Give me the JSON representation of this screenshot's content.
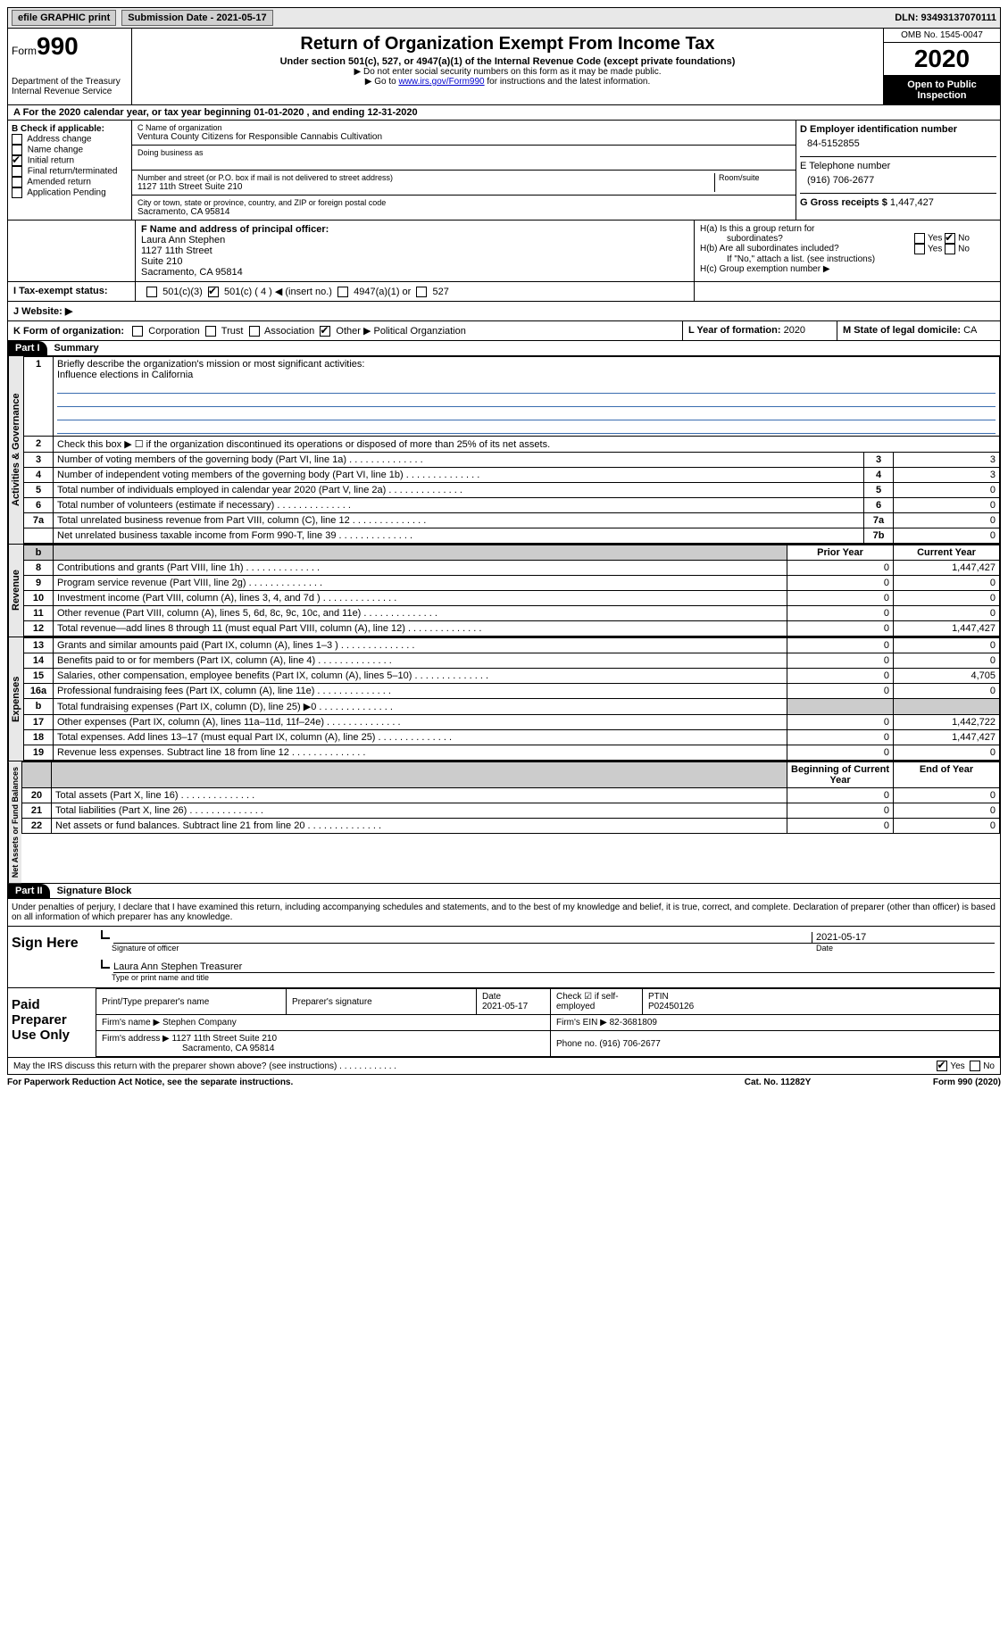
{
  "topbar": {
    "efile": "efile GRAPHIC print",
    "submission": "Submission Date - 2021-05-17",
    "dln": "DLN: 93493137070111"
  },
  "header": {
    "form_word": "Form",
    "form_num": "990",
    "dept": "Department of the Treasury\nInternal Revenue Service",
    "title": "Return of Organization Exempt From Income Tax",
    "subtitle": "Under section 501(c), 527, or 4947(a)(1) of the Internal Revenue Code (except private foundations)",
    "note1": "▶ Do not enter social security numbers on this form as it may be made public.",
    "note2_pre": "▶ Go to ",
    "note2_link": "www.irs.gov/Form990",
    "note2_post": " for instructions and the latest information.",
    "omb": "OMB No. 1545-0047",
    "year": "2020",
    "inspect": "Open to Public Inspection"
  },
  "period": "A For the 2020 calendar year, or tax year beginning 01-01-2020     , and ending 12-31-2020",
  "boxB": {
    "title": "B Check if applicable:",
    "items": [
      "Address change",
      "Name change",
      "Initial return",
      "Final return/terminated",
      "Amended return",
      "Application Pending"
    ],
    "checked_index": 2
  },
  "boxC": {
    "name_lbl": "C Name of organization",
    "name": "Ventura County Citizens for Responsible Cannabis Cultivation",
    "dba_lbl": "Doing business as",
    "addr_lbl": "Number and street (or P.O. box if mail is not delivered to street address)",
    "room_lbl": "Room/suite",
    "addr": "1127 11th Street Suite 210",
    "city_lbl": "City or town, state or province, country, and ZIP or foreign postal code",
    "city": "Sacramento, CA  95814"
  },
  "boxD": {
    "lbl": "D Employer identification number",
    "val": "84-5152855"
  },
  "boxE": {
    "lbl": "E Telephone number",
    "val": "(916) 706-2677"
  },
  "boxG": {
    "lbl": "G Gross receipts $",
    "val": "1,447,427"
  },
  "boxF": {
    "lbl": "F  Name and address of principal officer:",
    "lines": [
      "Laura Ann Stephen",
      "1127 11th Street",
      "Suite 210",
      "Sacramento, CA  95814"
    ]
  },
  "boxH": {
    "ha": "H(a)  Is this a group return for",
    "ha2": "subordinates?",
    "hb": "H(b)  Are all subordinates included?",
    "hnote": "If \"No,\" attach a list. (see instructions)",
    "hc": "H(c)  Group exemption number ▶",
    "yes": "Yes",
    "no": "No"
  },
  "boxI": {
    "lbl": "I    Tax-exempt status:",
    "opts": [
      "501(c)(3)",
      "501(c) ( 4 ) ◀ (insert no.)",
      "4947(a)(1) or",
      "527"
    ],
    "checked_index": 1
  },
  "boxJ": "J   Website: ▶",
  "boxK": {
    "lbl": "K Form of organization:",
    "opts": [
      "Corporation",
      "Trust",
      "Association",
      "Other ▶"
    ],
    "checked_index": 3,
    "other": "Political Organziation"
  },
  "boxL": {
    "lbl": "L Year of formation:",
    "val": "2020"
  },
  "boxM": {
    "lbl": "M State of legal domicile:",
    "val": "CA"
  },
  "part1": {
    "hdr": "Part I",
    "title": "Summary"
  },
  "summary": {
    "line1_lbl": "Briefly describe the organization's mission or most significant activities:",
    "line1_val": "Influence elections in California",
    "line2": "Check this box ▶ ☐  if the organization discontinued its operations or disposed of more than 25% of its net assets.",
    "rows_gov": [
      {
        "n": "3",
        "t": "Number of voting members of the governing body (Part VI, line 1a)",
        "k": "3",
        "v": "3"
      },
      {
        "n": "4",
        "t": "Number of independent voting members of the governing body (Part VI, line 1b)",
        "k": "4",
        "v": "3"
      },
      {
        "n": "5",
        "t": "Total number of individuals employed in calendar year 2020 (Part V, line 2a)",
        "k": "5",
        "v": "0"
      },
      {
        "n": "6",
        "t": "Total number of volunteers (estimate if necessary)",
        "k": "6",
        "v": "0"
      },
      {
        "n": "7a",
        "t": "Total unrelated business revenue from Part VIII, column (C), line 12",
        "k": "7a",
        "v": "0"
      },
      {
        "n": "",
        "t": "Net unrelated business taxable income from Form 990-T, line 39",
        "k": "7b",
        "v": "0"
      }
    ],
    "hdr_prior": "Prior Year",
    "hdr_curr": "Current Year",
    "rows_rev": [
      {
        "n": "8",
        "t": "Contributions and grants (Part VIII, line 1h)",
        "p": "0",
        "c": "1,447,427"
      },
      {
        "n": "9",
        "t": "Program service revenue (Part VIII, line 2g)",
        "p": "0",
        "c": "0"
      },
      {
        "n": "10",
        "t": "Investment income (Part VIII, column (A), lines 3, 4, and 7d )",
        "p": "0",
        "c": "0"
      },
      {
        "n": "11",
        "t": "Other revenue (Part VIII, column (A), lines 5, 6d, 8c, 9c, 10c, and 11e)",
        "p": "0",
        "c": "0"
      },
      {
        "n": "12",
        "t": "Total revenue—add lines 8 through 11 (must equal Part VIII, column (A), line 12)",
        "p": "0",
        "c": "1,447,427"
      }
    ],
    "rows_exp": [
      {
        "n": "13",
        "t": "Grants and similar amounts paid (Part IX, column (A), lines 1–3 )",
        "p": "0",
        "c": "0"
      },
      {
        "n": "14",
        "t": "Benefits paid to or for members (Part IX, column (A), line 4)",
        "p": "0",
        "c": "0"
      },
      {
        "n": "15",
        "t": "Salaries, other compensation, employee benefits (Part IX, column (A), lines 5–10)",
        "p": "0",
        "c": "4,705"
      },
      {
        "n": "16a",
        "t": "Professional fundraising fees (Part IX, column (A), line 11e)",
        "p": "0",
        "c": "0"
      },
      {
        "n": "b",
        "t": "Total fundraising expenses (Part IX, column (D), line 25) ▶0",
        "p": "shade",
        "c": "shade"
      },
      {
        "n": "17",
        "t": "Other expenses (Part IX, column (A), lines 11a–11d, 11f–24e)",
        "p": "0",
        "c": "1,442,722"
      },
      {
        "n": "18",
        "t": "Total expenses. Add lines 13–17 (must equal Part IX, column (A), line 25)",
        "p": "0",
        "c": "1,447,427"
      },
      {
        "n": "19",
        "t": "Revenue less expenses. Subtract line 18 from line 12",
        "p": "0",
        "c": "0"
      }
    ],
    "hdr_beg": "Beginning of Current Year",
    "hdr_end": "End of Year",
    "rows_net": [
      {
        "n": "20",
        "t": "Total assets (Part X, line 16)",
        "p": "0",
        "c": "0"
      },
      {
        "n": "21",
        "t": "Total liabilities (Part X, line 26)",
        "p": "0",
        "c": "0"
      },
      {
        "n": "22",
        "t": "Net assets or fund balances. Subtract line 21 from line 20",
        "p": "0",
        "c": "0"
      }
    ]
  },
  "tabs": {
    "gov": "Activities & Governance",
    "rev": "Revenue",
    "exp": "Expenses",
    "net": "Net Assets or Fund Balances"
  },
  "part2": {
    "hdr": "Part II",
    "title": "Signature Block"
  },
  "sig": {
    "decl": "Under penalties of perjury, I declare that I have examined this return, including accompanying schedules and statements, and to the best of my knowledge and belief, it is true, correct, and complete. Declaration of preparer (other than officer) is based on all information of which preparer has any knowledge.",
    "sign_here": "Sign Here",
    "sig_officer": "Signature of officer",
    "date": "Date",
    "date_val": "2021-05-17",
    "name_title": "Laura Ann Stephen  Treasurer",
    "type_name": "Type or print name and title"
  },
  "prep": {
    "title": "Paid Preparer Use Only",
    "h1": "Print/Type preparer's name",
    "h2": "Preparer's signature",
    "h3": "Date",
    "h3v": "2021-05-17",
    "h4": "Check ☑ if self-employed",
    "h5": "PTIN",
    "h5v": "P02450126",
    "firm_lbl": "Firm's name    ▶",
    "firm": "Stephen Company",
    "ein_lbl": "Firm's EIN ▶",
    "ein": "82-3681809",
    "addr_lbl": "Firm's address ▶",
    "addr1": "1127 11th Street Suite 210",
    "addr2": "Sacramento, CA  95814",
    "phone_lbl": "Phone no.",
    "phone": "(916) 706-2677"
  },
  "footer": {
    "q": "May the IRS discuss this return with the preparer shown above? (see instructions)",
    "yes": "Yes",
    "no": "No",
    "pra": "For Paperwork Reduction Act Notice, see the separate instructions.",
    "cat": "Cat. No. 11282Y",
    "form": "Form 990 (2020)"
  }
}
